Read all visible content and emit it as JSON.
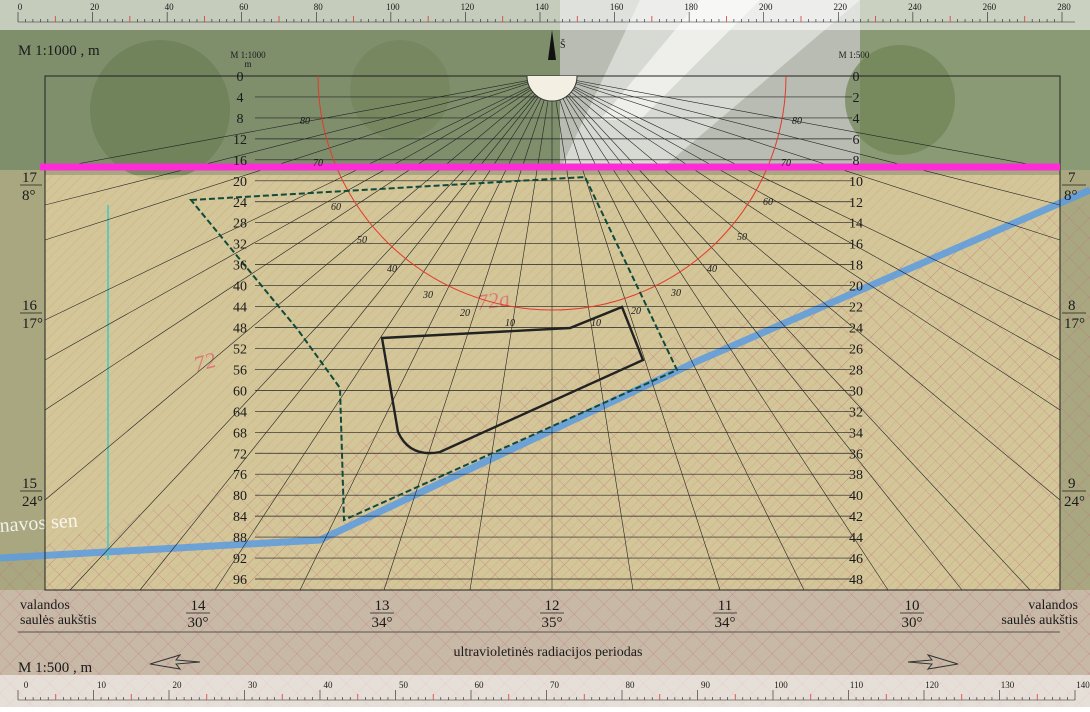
{
  "top_scale": {
    "label": "M 1:1000 , m",
    "ticks": [
      "0",
      "20",
      "40",
      "60",
      "80",
      "100",
      "120",
      "140",
      "160",
      "180",
      "200",
      "220",
      "240",
      "260",
      "280"
    ]
  },
  "bottom_scale": {
    "label": "M 1:500 , m",
    "ticks": [
      "0",
      "10",
      "20",
      "30",
      "40",
      "50",
      "60",
      "70",
      "80",
      "90",
      "100",
      "110",
      "120",
      "130",
      "140"
    ]
  },
  "north_marker": "Š",
  "left_axis": {
    "header_line1": "M 1:1000",
    "header_line2": "m",
    "values": [
      "0",
      "4",
      "8",
      "12",
      "16",
      "20",
      "24",
      "28",
      "32",
      "36",
      "40",
      "44",
      "48",
      "52",
      "56",
      "60",
      "64",
      "68",
      "72",
      "76",
      "80",
      "84",
      "88",
      "92",
      "96"
    ]
  },
  "right_axis": {
    "header": "M 1:500",
    "values": [
      "0",
      "2",
      "4",
      "6",
      "8",
      "10",
      "12",
      "14",
      "16",
      "18",
      "20",
      "22",
      "24",
      "26",
      "28",
      "30",
      "32",
      "34",
      "36",
      "38",
      "40",
      "42",
      "44",
      "46",
      "48"
    ]
  },
  "left_side_labels": [
    {
      "hour": "17",
      "angle": "8°"
    },
    {
      "hour": "16",
      "angle": "17°"
    },
    {
      "hour": "15",
      "angle": "24°"
    }
  ],
  "right_side_labels": [
    {
      "hour": "7",
      "angle": "8°"
    },
    {
      "hour": "8",
      "angle": "17°"
    },
    {
      "hour": "9",
      "angle": "24°"
    }
  ],
  "bottom_labels": [
    {
      "hour": "14",
      "angle": "30°"
    },
    {
      "hour": "13",
      "angle": "34°"
    },
    {
      "hour": "12",
      "angle": "35°"
    },
    {
      "hour": "11",
      "angle": "34°"
    },
    {
      "hour": "10",
      "angle": "30°"
    }
  ],
  "legend_left": {
    "line1": "valandos",
    "line2": "saulės aukštis"
  },
  "legend_right": {
    "line1": "valandos",
    "line2": "saulės aukštis"
  },
  "uv_label": "ultravioletinės radiacijos periodas",
  "arc_labels_left": [
    "80",
    "70",
    "60",
    "50",
    "40",
    "30",
    "20",
    "10"
  ],
  "arc_labels_right": [
    "80",
    "70",
    "60",
    "50",
    "40",
    "30",
    "20",
    "10"
  ],
  "map_labels": {
    "parcel_a": "72a",
    "parcel_b": "72",
    "street": "navos sen"
  },
  "colors": {
    "magenta_line": "#ff2bd6",
    "blue_line": "#5b9be0",
    "hatch": "#e8c07a",
    "red_arc": "#e23a2a",
    "grid": "#222222"
  }
}
